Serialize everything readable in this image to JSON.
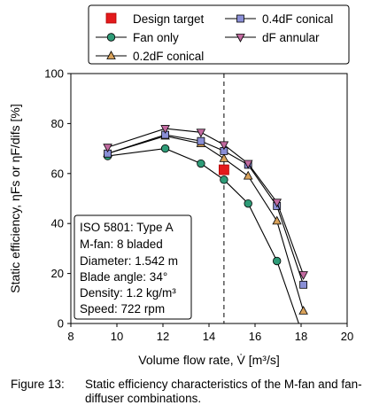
{
  "chart_data": {
    "type": "line",
    "xlabel": "Volume flow rate, V̇ [m³/s]",
    "ylabel": "Static efficiency, ηFs or ηF/difs [%]",
    "xlim": [
      8,
      20
    ],
    "ylim": [
      0,
      100
    ],
    "xticks": [
      8,
      10,
      12,
      14,
      16,
      18,
      20
    ],
    "yticks": [
      0,
      20,
      40,
      60,
      80,
      100
    ],
    "grid": false,
    "design_flow_rate": 14.65,
    "series": [
      {
        "name": "Fan only",
        "marker": "circle",
        "color": "#2e9b77",
        "x": [
          9.6,
          12.1,
          13.65,
          14.65,
          15.7,
          16.95,
          17.9
        ],
        "y": [
          67,
          70,
          64,
          57.5,
          48,
          25,
          0
        ]
      },
      {
        "name": "0.2dF conical",
        "marker": "triangle-up",
        "color": "#d9a25a",
        "x": [
          9.6,
          12.1,
          13.65,
          14.65,
          15.7,
          16.95,
          18.1
        ],
        "y": [
          68,
          75,
          72,
          66,
          59,
          41,
          5
        ]
      },
      {
        "name": "0.4dF conical",
        "marker": "square",
        "color": "#8a8fd6",
        "x": [
          9.6,
          12.1,
          13.65,
          14.65,
          15.7,
          16.95,
          18.1
        ],
        "y": [
          68,
          75.5,
          73,
          69,
          63.5,
          47,
          15.5
        ]
      },
      {
        "name": "dF annular",
        "marker": "triangle-down",
        "color": "#c26aa0",
        "x": [
          9.6,
          12.1,
          13.65,
          14.65,
          15.7,
          16.95,
          18.1
        ],
        "y": [
          70.5,
          78,
          76.5,
          71.5,
          64,
          48.5,
          19.5
        ]
      }
    ],
    "design_target": {
      "name": "Design target",
      "marker": "square",
      "color": "#e31a1c",
      "x": 14.65,
      "y": 61.5
    }
  },
  "legend": {
    "design_target": "Design target",
    "fan_only": "Fan only",
    "conical_02": "0.2dF conical",
    "conical_04": "0.4dF conical",
    "annular": "dF annular"
  },
  "annotation": {
    "lines": [
      "ISO 5801: Type A",
      "M-fan: 8 bladed",
      "Diameter: 1.542 m",
      "Blade angle: 34°",
      "Density: 1.2 kg/m³",
      "Speed: 722 rpm"
    ]
  },
  "caption": {
    "label": "Figure 13:",
    "text": "Static efficiency characteristics of the M-fan and fan-diffuser combinations."
  }
}
